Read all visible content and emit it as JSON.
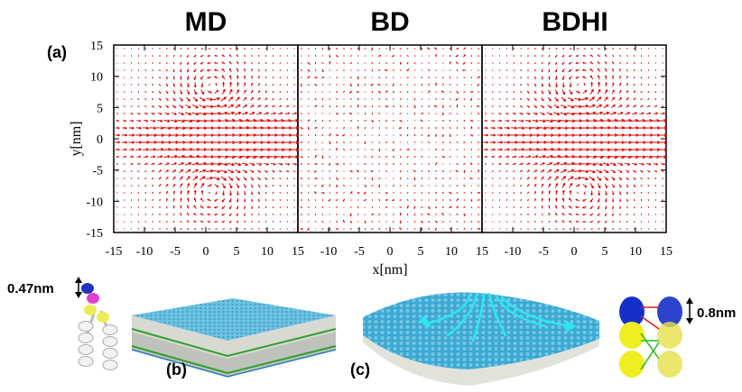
{
  "titles": {
    "md": "MD",
    "bd": "BD",
    "bdhi": "BDHI"
  },
  "panel_labels": {
    "a": "(a)",
    "b": "(b)",
    "c": "(c)"
  },
  "axes": {
    "xlabel": "x[nm]",
    "ylabel": "y[nm]",
    "y_ticks": [
      "15",
      "10",
      "5",
      "0",
      "-5",
      "-10",
      "-15"
    ],
    "x_ticks_md": [
      "-15",
      "-10",
      "-5",
      "0",
      "5",
      "10",
      "15"
    ],
    "x_ticks_bd": [
      "-10",
      "-5",
      "0",
      "5",
      "10",
      "15"
    ],
    "x_ticks_bdhi": [
      "-10",
      "-5",
      "0",
      "5",
      "10",
      "15"
    ]
  },
  "scale_bars": {
    "lipid": "0.47nm",
    "beads": "0.8nm"
  },
  "colors": {
    "arrows": "#e00000",
    "head": "#4bb0d6",
    "tail": "#e8e8e0",
    "interface": "#2ea02e",
    "flow": "#2ee6ee"
  },
  "chart_data": [
    {
      "type": "vector-field",
      "name": "MD",
      "xlim": [
        -15,
        15
      ],
      "ylim": [
        -15,
        15
      ],
      "pattern": "counter-rotating vortex pair, jet along +x at y=0"
    },
    {
      "type": "vector-field",
      "name": "BD",
      "xlim": [
        -15,
        15
      ],
      "ylim": [
        -15,
        15
      ],
      "pattern": "small random vectors, no coherent flow"
    },
    {
      "type": "vector-field",
      "name": "BDHI",
      "xlim": [
        -15,
        15
      ],
      "ylim": [
        -15,
        15
      ],
      "pattern": "counter-rotating vortex pair, jet along +x at y=0"
    }
  ]
}
